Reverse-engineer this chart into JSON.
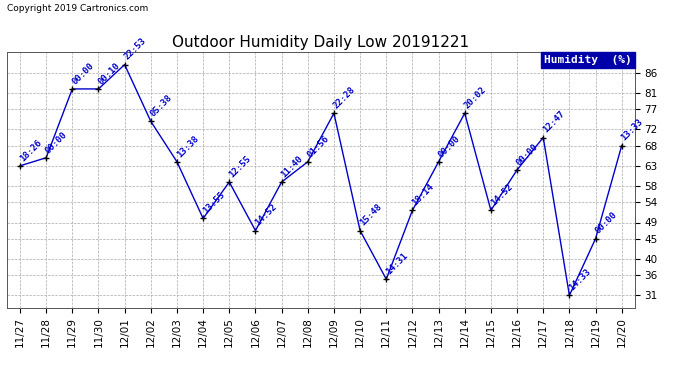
{
  "title": "Outdoor Humidity Daily Low 20191221",
  "copyright": "Copyright 2019 Cartronics.com",
  "legend_label": "Humidity  (%)",
  "dates": [
    "11/27",
    "11/28",
    "11/29",
    "11/30",
    "12/01",
    "12/02",
    "12/03",
    "12/04",
    "12/05",
    "12/06",
    "12/07",
    "12/08",
    "12/09",
    "12/10",
    "12/11",
    "12/12",
    "12/13",
    "12/14",
    "12/15",
    "12/16",
    "12/17",
    "12/18",
    "12/19",
    "12/20"
  ],
  "values": [
    63,
    65,
    82,
    82,
    88,
    74,
    64,
    50,
    59,
    47,
    59,
    64,
    76,
    47,
    35,
    52,
    64,
    76,
    52,
    62,
    70,
    31,
    45,
    68
  ],
  "annotations": [
    "18:26",
    "00:00",
    "00:00",
    "00:10",
    "22:53",
    "05:38",
    "13:38",
    "13:55",
    "12:55",
    "14:52",
    "11:40",
    "01:56",
    "22:28",
    "15:48",
    "14:31",
    "18:14",
    "00:00",
    "20:02",
    "14:52",
    "00:00",
    "12:47",
    "14:33",
    "00:00",
    "13:33"
  ],
  "ylim": [
    28,
    91
  ],
  "yticks": [
    31,
    36,
    40,
    45,
    49,
    54,
    58,
    63,
    68,
    72,
    77,
    81,
    86
  ],
  "line_color": "#0000cc",
  "marker_color": "#000000",
  "annotation_color": "#0000cc",
  "bg_color": "#ffffff",
  "grid_color": "#aaaaaa",
  "title_fontsize": 11,
  "annotation_fontsize": 6.5,
  "copyright_fontsize": 6.5,
  "tick_fontsize": 7.5,
  "legend_bg": "#0000aa",
  "legend_fg": "#ffffff",
  "legend_fontsize": 8
}
